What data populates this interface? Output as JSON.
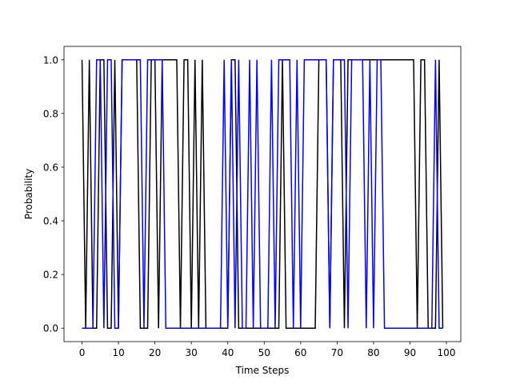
{
  "chart_data": {
    "type": "line",
    "title": "",
    "xlabel": "Time Steps",
    "ylabel": "Probability",
    "xlim": [
      -4.95,
      103.95
    ],
    "ylim": [
      -0.05,
      1.05
    ],
    "xticks": [
      0,
      10,
      20,
      30,
      40,
      50,
      60,
      70,
      80,
      90,
      100
    ],
    "yticks": [
      0.0,
      0.2,
      0.4,
      0.6,
      0.8,
      1.0
    ],
    "xtick_labels": [
      "0",
      "10",
      "20",
      "30",
      "40",
      "50",
      "60",
      "70",
      "80",
      "90",
      "100"
    ],
    "ytick_labels": [
      "0.0",
      "0.2",
      "0.4",
      "0.6",
      "0.8",
      "1.0"
    ],
    "grid": false,
    "legend": "none",
    "x": [
      0,
      1,
      2,
      3,
      4,
      5,
      6,
      7,
      8,
      9,
      10,
      11,
      12,
      13,
      14,
      15,
      16,
      17,
      18,
      19,
      20,
      21,
      22,
      23,
      24,
      25,
      26,
      27,
      28,
      29,
      30,
      31,
      32,
      33,
      34,
      35,
      36,
      37,
      38,
      39,
      40,
      41,
      42,
      43,
      44,
      45,
      46,
      47,
      48,
      49,
      50,
      51,
      52,
      53,
      54,
      55,
      56,
      57,
      58,
      59,
      60,
      61,
      62,
      63,
      64,
      65,
      66,
      67,
      68,
      69,
      70,
      71,
      72,
      73,
      74,
      75,
      76,
      77,
      78,
      79,
      80,
      81,
      82,
      83,
      84,
      85,
      86,
      87,
      88,
      89,
      90,
      91,
      92,
      93,
      94,
      95,
      96,
      97,
      98,
      99
    ],
    "series": [
      {
        "color": "#000000",
        "values": [
          1,
          0,
          1,
          0,
          0,
          1,
          1,
          0,
          0,
          1,
          0,
          1,
          1,
          1,
          1,
          1,
          0,
          0,
          0,
          1,
          1,
          0,
          1,
          1,
          1,
          1,
          1,
          0,
          1,
          1,
          0,
          1,
          0,
          1,
          0,
          0,
          0,
          0,
          0,
          0,
          0,
          1,
          1,
          0,
          0,
          0,
          0,
          0,
          0,
          0,
          0,
          0,
          0,
          0,
          0,
          1,
          0,
          0,
          0,
          0,
          0,
          0,
          0,
          0,
          0,
          1,
          1,
          1,
          0,
          1,
          1,
          1,
          0,
          1,
          1,
          1,
          1,
          1,
          1,
          1,
          1,
          1,
          1,
          1,
          1,
          1,
          1,
          1,
          1,
          1,
          1,
          1,
          0,
          1,
          1,
          0,
          0,
          0,
          1,
          0
        ]
      },
      {
        "color": "#0000ff",
        "values": [
          0,
          0,
          0,
          0,
          1,
          1,
          0,
          1,
          1,
          0,
          0,
          1,
          1,
          1,
          1,
          1,
          1,
          0,
          1,
          1,
          1,
          1,
          1,
          0,
          0,
          0,
          0,
          0,
          0,
          0,
          0,
          0,
          0,
          0,
          0,
          0,
          0,
          0,
          0,
          1,
          0,
          1,
          0,
          1,
          0,
          0,
          1,
          0,
          1,
          0,
          0,
          0,
          1,
          0,
          1,
          1,
          1,
          1,
          0,
          1,
          0,
          1,
          1,
          1,
          1,
          1,
          1,
          1,
          0,
          1,
          1,
          1,
          1,
          0,
          1,
          1,
          1,
          1,
          0,
          1,
          0,
          1,
          1,
          0,
          0,
          0,
          0,
          0,
          0,
          0,
          0,
          0,
          0,
          0,
          0,
          0,
          0,
          1,
          0,
          0
        ]
      }
    ]
  }
}
